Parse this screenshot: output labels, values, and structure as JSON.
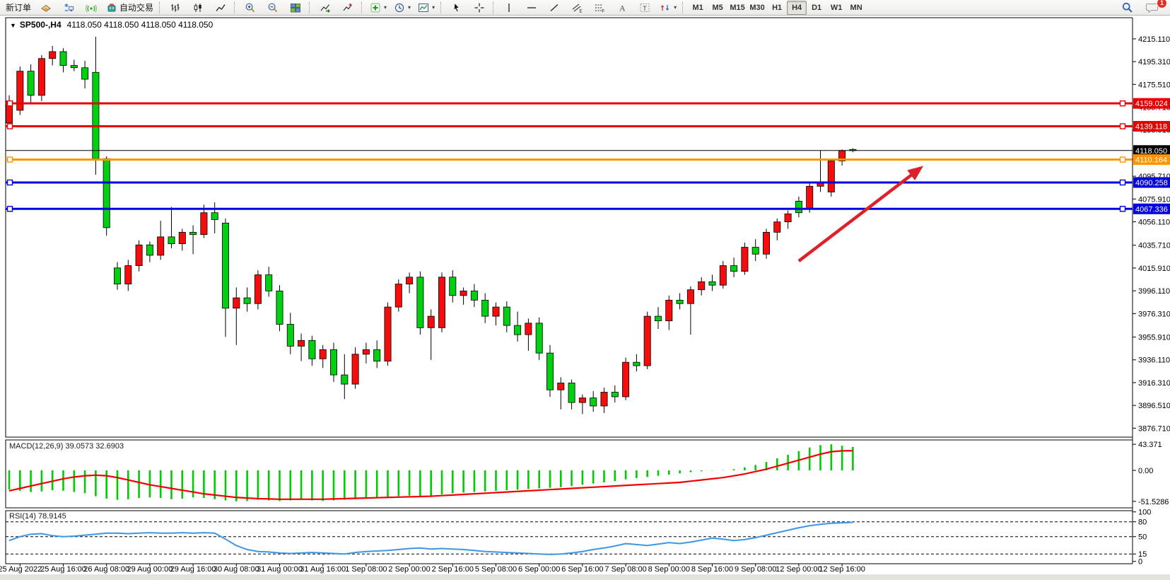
{
  "toolbar": {
    "new_order": "新订单",
    "autotrading": "自动交易",
    "timeframes": [
      "M1",
      "M5",
      "M15",
      "M30",
      "H1",
      "H4",
      "D1",
      "W1",
      "MN"
    ],
    "active_timeframe": "H4",
    "notification_badge": "1"
  },
  "header": {
    "symbol": "SP500-,H4",
    "quotes": "4118.050 4118.050 4118.050 4118.050"
  },
  "indicators": {
    "macd_label": "MACD(12,26,9)",
    "macd_values": "39.0573 32.6903",
    "rsi_label": "RSI(14)",
    "rsi_value": "78.9145"
  },
  "chart_data": {
    "type": "candlestick",
    "symbol": "SP500-",
    "timeframe": "H4",
    "colors": {
      "bull": "#f50d0d",
      "bear": "#00cf12",
      "macd_hist": "#00cc00",
      "macd_signal": "#f00000",
      "rsi_line": "#3d96e8",
      "arrow": "#e02028"
    },
    "price_axis_ticks": [
      "4215.110",
      "4195.310",
      "4175.510",
      "4155.710",
      "4135.910",
      "4095.710",
      "4075.910",
      "4056.110",
      "4035.710",
      "4015.910",
      "3996.110",
      "3976.310",
      "3955.910",
      "3936.110",
      "3916.310",
      "3896.510",
      "3876.710"
    ],
    "price_lines": [
      {
        "label": "4159.024",
        "price": 4159.024,
        "color": "#e60000",
        "width": 3,
        "current": false
      },
      {
        "label": "4139.118",
        "price": 4139.118,
        "color": "#e60000",
        "width": 3,
        "current": false
      },
      {
        "label": "4118.050",
        "price": 4118.05,
        "color": "#000000",
        "width": 1,
        "current": true
      },
      {
        "label": "4110.164",
        "price": 4110.164,
        "color": "#ff9500",
        "width": 3,
        "current": false
      },
      {
        "label": "4090.258",
        "price": 4090.258,
        "color": "#0000e0",
        "width": 3,
        "current": false
      },
      {
        "label": "4067.336",
        "price": 4067.336,
        "color": "#0000e0",
        "width": 3,
        "current": false
      }
    ],
    "time_labels": [
      "25 Aug 2022",
      "25 Aug 16:00",
      "26 Aug 08:00",
      "29 Aug 00:00",
      "29 Aug 16:00",
      "30 Aug 08:00",
      "31 Aug 00:00",
      "31 Aug 16:00",
      "1 Sep 08:00",
      "2 Sep 00:00",
      "2 Sep 16:00",
      "5 Sep 08:00",
      "6 Sep 00:00",
      "6 Sep 16:00",
      "7 Sep 08:00",
      "8 Sep 00:00",
      "8 Sep 16:00",
      "9 Sep 08:00",
      "12 Sep 00:00",
      "12 Sep 16:00"
    ],
    "candles": [
      [
        4142,
        4166,
        4137,
        4161
      ],
      [
        4153,
        4191,
        4149,
        4187
      ],
      [
        4187,
        4193,
        4159,
        4166
      ],
      [
        4166,
        4201,
        4161,
        4198
      ],
      [
        4198,
        4209,
        4192,
        4204
      ],
      [
        4204,
        4207,
        4186,
        4192
      ],
      [
        4192,
        4197,
        4187,
        4190
      ],
      [
        4190,
        4196,
        4172,
        4180
      ],
      [
        4186,
        4217,
        4097,
        4111
      ],
      [
        4111,
        4113,
        4044,
        4051
      ],
      [
        4016,
        4021,
        3997,
        4002
      ],
      [
        4002,
        4023,
        3996,
        4018
      ],
      [
        4018,
        4040,
        4013,
        4036
      ],
      [
        4036,
        4039,
        4021,
        4027
      ],
      [
        4027,
        4057,
        4023,
        4043
      ],
      [
        4043,
        4069,
        4033,
        4037
      ],
      [
        4037,
        4050,
        4031,
        4047
      ],
      [
        4047,
        4053,
        4028,
        4045
      ],
      [
        4045,
        4071,
        4042,
        4064
      ],
      [
        4064,
        4073,
        4046,
        4058
      ],
      [
        4055,
        4059,
        3956,
        3981
      ],
      [
        3981,
        3999,
        3949,
        3990
      ],
      [
        3990,
        3999,
        3978,
        3985
      ],
      [
        3985,
        4014,
        3980,
        4010
      ],
      [
        4010,
        4017,
        3991,
        3996
      ],
      [
        3996,
        4001,
        3961,
        3967
      ],
      [
        3967,
        3977,
        3941,
        3948
      ],
      [
        3948,
        3959,
        3935,
        3953
      ],
      [
        3953,
        3957,
        3931,
        3937
      ],
      [
        3937,
        3949,
        3929,
        3945
      ],
      [
        3945,
        3951,
        3917,
        3923
      ],
      [
        3923,
        3941,
        3902,
        3915
      ],
      [
        3915,
        3947,
        3911,
        3941
      ],
      [
        3941,
        3951,
        3933,
        3945
      ],
      [
        3945,
        3953,
        3929,
        3935
      ],
      [
        3935,
        3986,
        3931,
        3982
      ],
      [
        3982,
        4006,
        3978,
        4002
      ],
      [
        4002,
        4012,
        3994,
        4008
      ],
      [
        4008,
        4013,
        3958,
        3964
      ],
      [
        3964,
        3980,
        3936,
        3974
      ],
      [
        3964,
        4012,
        3960,
        4008
      ],
      [
        4008,
        4014,
        3986,
        3992
      ],
      [
        3992,
        3999,
        3984,
        3996
      ],
      [
        3996,
        4002,
        3982,
        3988
      ],
      [
        3988,
        3994,
        3968,
        3974
      ],
      [
        3974,
        3986,
        3966,
        3982
      ],
      [
        3982,
        3987,
        3960,
        3966
      ],
      [
        3966,
        3978,
        3952,
        3958
      ],
      [
        3958,
        3972,
        3944,
        3968
      ],
      [
        3968,
        3973,
        3936,
        3942
      ],
      [
        3942,
        3949,
        3904,
        3910
      ],
      [
        3910,
        3921,
        3893,
        3916
      ],
      [
        3916,
        3919,
        3893,
        3899
      ],
      [
        3899,
        3906,
        3889,
        3903
      ],
      [
        3903,
        3909,
        3891,
        3896
      ],
      [
        3896,
        3912,
        3890,
        3908
      ],
      [
        3908,
        3914,
        3899,
        3904
      ],
      [
        3904,
        3938,
        3901,
        3934
      ],
      [
        3934,
        3941,
        3926,
        3931
      ],
      [
        3931,
        3978,
        3928,
        3974
      ],
      [
        3974,
        3982,
        3963,
        3970
      ],
      [
        3970,
        3992,
        3962,
        3988
      ],
      [
        3988,
        3994,
        3980,
        3985
      ],
      [
        3985,
        4000,
        3958,
        3997
      ],
      [
        3997,
        4008,
        3992,
        4004
      ],
      [
        4004,
        4010,
        3996,
        4001
      ],
      [
        4001,
        4022,
        3998,
        4018
      ],
      [
        4018,
        4025,
        4008,
        4013
      ],
      [
        4013,
        4038,
        4010,
        4034
      ],
      [
        4034,
        4041,
        4022,
        4028
      ],
      [
        4028,
        4050,
        4024,
        4047
      ],
      [
        4047,
        4059,
        4040,
        4056
      ],
      [
        4056,
        4066,
        4050,
        4063
      ],
      [
        4074,
        4078,
        4060,
        4064
      ],
      [
        4068,
        4090,
        4064,
        4087
      ],
      [
        4087,
        4118,
        4082,
        4090
      ],
      [
        4082,
        4111,
        4078,
        4109
      ],
      [
        4109,
        4119,
        4105,
        4118
      ],
      [
        4119,
        4120,
        4116.5,
        4118
      ]
    ],
    "macd": {
      "scale_ticks": [
        "43.371",
        "0.00",
        "-51.5286"
      ],
      "histogram": [
        -32,
        -34,
        -36,
        -35,
        -33,
        -34,
        -36,
        -38,
        -43,
        -47,
        -49,
        -48,
        -46,
        -45,
        -46,
        -48,
        -47,
        -45,
        -46,
        -48,
        -50,
        -51.5,
        -51,
        -49,
        -50,
        -51,
        -50,
        -49,
        -50,
        -51,
        -50,
        -49,
        -48,
        -46,
        -45,
        -44,
        -43,
        -42,
        -43,
        -42,
        -40,
        -38,
        -37,
        -36,
        -35,
        -34,
        -33,
        -32,
        -31,
        -30,
        -29,
        -28,
        -26,
        -24,
        -22,
        -20,
        -18,
        -15,
        -13,
        -11,
        -9,
        -7,
        -5,
        -3,
        -1.5,
        -0.5,
        0.5,
        2,
        5,
        9,
        14,
        20,
        26,
        32,
        38,
        42,
        43.371,
        41,
        39.0573
      ],
      "signal": [
        -34,
        -30,
        -26,
        -22,
        -18,
        -14,
        -11,
        -9,
        -8,
        -9,
        -12,
        -16,
        -20,
        -24,
        -27,
        -30,
        -33,
        -36,
        -39,
        -41,
        -43,
        -45,
        -46,
        -47,
        -47.5,
        -48,
        -48,
        -48,
        -48,
        -48,
        -47.5,
        -47,
        -46.5,
        -46,
        -45.5,
        -45,
        -44.5,
        -44,
        -43.5,
        -43,
        -42,
        -41,
        -40,
        -39,
        -38,
        -37,
        -36,
        -35,
        -34,
        -33,
        -32,
        -31,
        -30,
        -29,
        -28,
        -27,
        -26,
        -25,
        -24,
        -23,
        -22,
        -21,
        -20,
        -18,
        -16,
        -14,
        -12,
        -9,
        -6,
        -2,
        2,
        7,
        12,
        17,
        22,
        27,
        31,
        32.5,
        32.6903
      ]
    },
    "rsi": {
      "scale_ticks": [
        "100",
        "80",
        "50",
        "15",
        "0"
      ],
      "levels": [
        80,
        50,
        15
      ],
      "values": [
        42,
        50,
        55,
        56,
        52,
        50,
        51,
        53,
        55,
        57,
        57,
        56,
        57,
        58,
        57,
        57,
        58,
        57,
        58,
        57,
        45,
        32,
        24,
        20,
        19,
        17,
        16,
        17,
        18,
        17,
        16,
        15,
        18,
        20,
        21,
        22,
        24,
        26,
        27,
        25,
        26,
        25,
        24,
        22,
        20,
        19,
        18,
        17,
        16,
        15,
        14,
        15,
        17,
        20,
        24,
        27,
        31,
        36,
        34,
        32,
        35,
        38,
        36,
        39,
        43,
        47,
        45,
        42,
        44,
        48,
        53,
        58,
        63,
        68,
        72,
        75,
        77,
        78,
        78.9145
      ]
    },
    "annotation_arrow": {
      "from_bar": 73,
      "from_price": 4022,
      "to_bar": 84,
      "to_price": 4101
    }
  }
}
